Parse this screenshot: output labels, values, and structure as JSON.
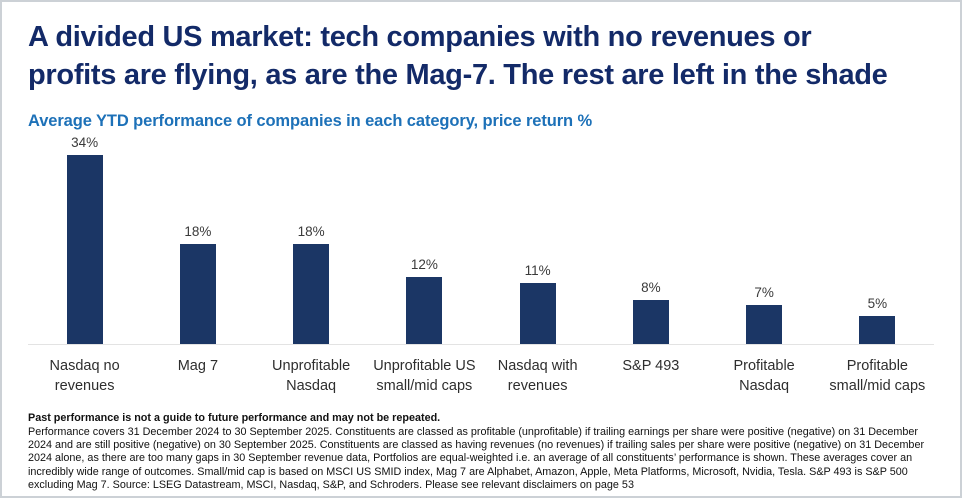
{
  "header": {
    "title_lines": [
      "A divided US market: tech companies with no revenues or",
      "profits are flying, as are the Mag-7. The rest are left in the shade"
    ],
    "subtitle": "Average YTD performance of companies in each category, price return %"
  },
  "chart_data": {
    "type": "bar",
    "title": "Average YTD performance of companies in each category, price return %",
    "categories": [
      "Nasdaq no revenues",
      "Mag 7",
      "Unprofitable Nasdaq",
      "Unprofitable US small/mid caps",
      "Nasdaq with revenues",
      "S&P 493",
      "Profitable Nasdaq",
      "Profitable small/mid caps"
    ],
    "values": [
      34,
      18,
      18,
      12,
      11,
      8,
      7,
      5
    ],
    "value_labels": [
      "34%",
      "18%",
      "18%",
      "12%",
      "11%",
      "8%",
      "7%",
      "5%"
    ],
    "unit": "%",
    "ylim": [
      0,
      36
    ],
    "grid": false,
    "legend": false,
    "bar_color": "#1b3665"
  },
  "footnote": {
    "bold_line": "Past performance is not a guide to future performance and may not be repeated.",
    "body": "Performance covers 31 December 2024 to 30 September 2025. Constituents are classed as profitable (unprofitable) if trailing earnings per share were positive (negative) on 31 December 2024 and are still positive (negative) on 30 September 2025. Constituents are classed as having revenues (no revenues) if trailing sales per share were positive (negative) on 31 December 2024 alone, as there are too many gaps in 30 September revenue data, Portfolios are equal-weighted i.e. an average of all constituents’ performance is shown. These averages cover an incredibly wide range of outcomes. Small/mid cap is based on MSCI US SMID index, Mag 7 are Alphabet, Amazon, Apple, Meta Platforms, Microsoft, Nvidia, Tesla. S&P 493 is S&P 500 excluding Mag 7. Source: LSEG Datastream, MSCI, Nasdaq, S&P, and Schroders. Please see relevant disclaimers on page 53"
  },
  "colors": {
    "title_navy": "#132a68",
    "subtitle_blue": "#1d71b8",
    "bar_navy": "#1b3665",
    "axis_line_gray": "#e3e3e3"
  }
}
